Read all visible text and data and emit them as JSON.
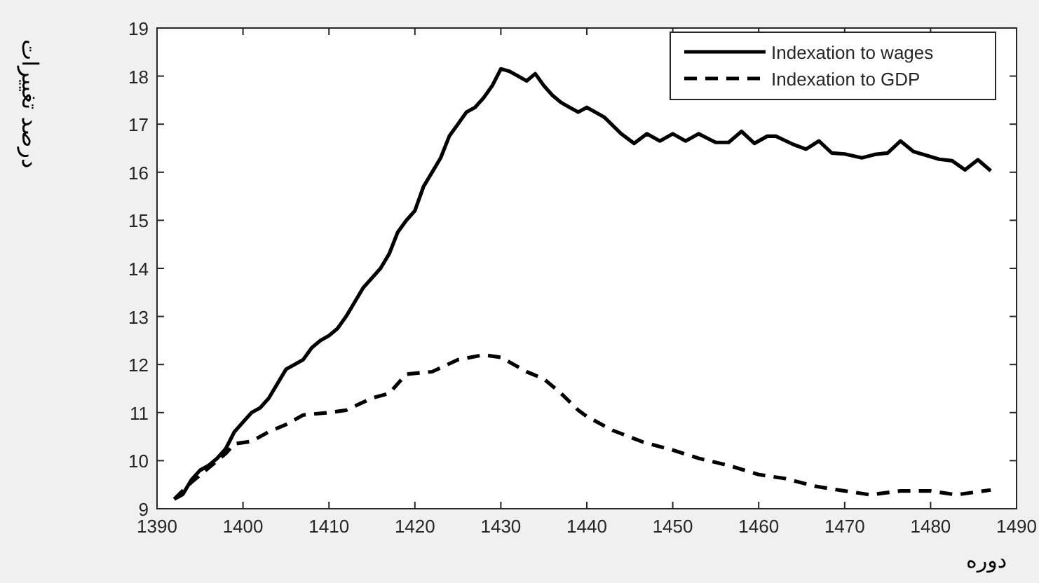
{
  "chart_data": {
    "type": "line",
    "xlabel": "دوره",
    "ylabel": "درصد تغییرات",
    "xlim": [
      1390,
      1490
    ],
    "xticks": [
      1390,
      1400,
      1410,
      1420,
      1430,
      1440,
      1450,
      1460,
      1470,
      1480,
      1490
    ],
    "ylim": [
      9,
      19
    ],
    "yticks": [
      9,
      10,
      11,
      12,
      13,
      14,
      15,
      16,
      17,
      18,
      19
    ],
    "legend": "top right",
    "grid": false,
    "series": [
      {
        "name": "Indexation to wages",
        "color": "#000000",
        "line_style": "solid",
        "x": [
          1392,
          1393,
          1394,
          1395,
          1396,
          1397,
          1398,
          1399,
          1400,
          1401,
          1402,
          1403,
          1404,
          1405,
          1406,
          1407,
          1408,
          1409,
          1410,
          1411,
          1412,
          1413,
          1414,
          1415,
          1416,
          1417,
          1418,
          1419,
          1420,
          1421,
          1422,
          1423,
          1424,
          1425,
          1426,
          1427,
          1428,
          1429,
          1430,
          1431,
          1432,
          1433,
          1434,
          1435,
          1436,
          1437,
          1438,
          1439,
          1440,
          1442,
          1444,
          1445.5,
          1447,
          1448.5,
          1450,
          1451.5,
          1453,
          1455,
          1456.5,
          1458,
          1459.5,
          1461,
          1462,
          1464,
          1465.5,
          1467,
          1468.5,
          1470,
          1472,
          1473.5,
          1475,
          1476.5,
          1478,
          1479.5,
          1481,
          1482.5,
          1484,
          1485.5,
          1487
        ],
        "values": [
          9.2,
          9.3,
          9.6,
          9.8,
          9.9,
          10.05,
          10.25,
          10.6,
          10.8,
          11.0,
          11.1,
          11.3,
          11.6,
          11.9,
          12.0,
          12.1,
          12.35,
          12.5,
          12.6,
          12.75,
          13.0,
          13.3,
          13.6,
          13.8,
          14.0,
          14.3,
          14.75,
          15.0,
          15.2,
          15.7,
          16.0,
          16.3,
          16.75,
          17.0,
          17.25,
          17.35,
          17.55,
          17.8,
          18.15,
          18.1,
          18.0,
          17.9,
          18.05,
          17.8,
          17.6,
          17.45,
          17.35,
          17.25,
          17.35,
          17.15,
          16.8,
          16.6,
          16.8,
          16.65,
          16.8,
          16.65,
          16.8,
          16.62,
          16.62,
          16.85,
          16.6,
          16.75,
          16.75,
          16.58,
          16.48,
          16.65,
          16.4,
          16.38,
          16.3,
          16.37,
          16.4,
          16.65,
          16.43,
          16.35,
          16.27,
          16.24,
          16.05,
          16.26,
          16.03
        ]
      },
      {
        "name": "Indexation to GDP",
        "color": "#000000",
        "line_style": "dashed",
        "x": [
          1392,
          1394,
          1396,
          1398,
          1399,
          1401,
          1403,
          1405,
          1407,
          1410,
          1412,
          1415,
          1417,
          1419,
          1422,
          1425,
          1428,
          1430,
          1433,
          1435,
          1437,
          1439,
          1440,
          1443,
          1446.5,
          1450,
          1453,
          1456.5,
          1460,
          1463,
          1466.5,
          1470,
          1473,
          1476.5,
          1480,
          1483,
          1487
        ],
        "values": [
          9.2,
          9.55,
          9.85,
          10.15,
          10.35,
          10.4,
          10.6,
          10.75,
          10.95,
          11.0,
          11.05,
          11.3,
          11.4,
          11.8,
          11.85,
          12.1,
          12.2,
          12.15,
          11.85,
          11.7,
          11.4,
          11.05,
          10.92,
          10.63,
          10.39,
          10.22,
          10.05,
          9.9,
          9.71,
          9.63,
          9.47,
          9.37,
          9.29,
          9.37,
          9.37,
          9.29,
          9.39
        ]
      }
    ]
  }
}
